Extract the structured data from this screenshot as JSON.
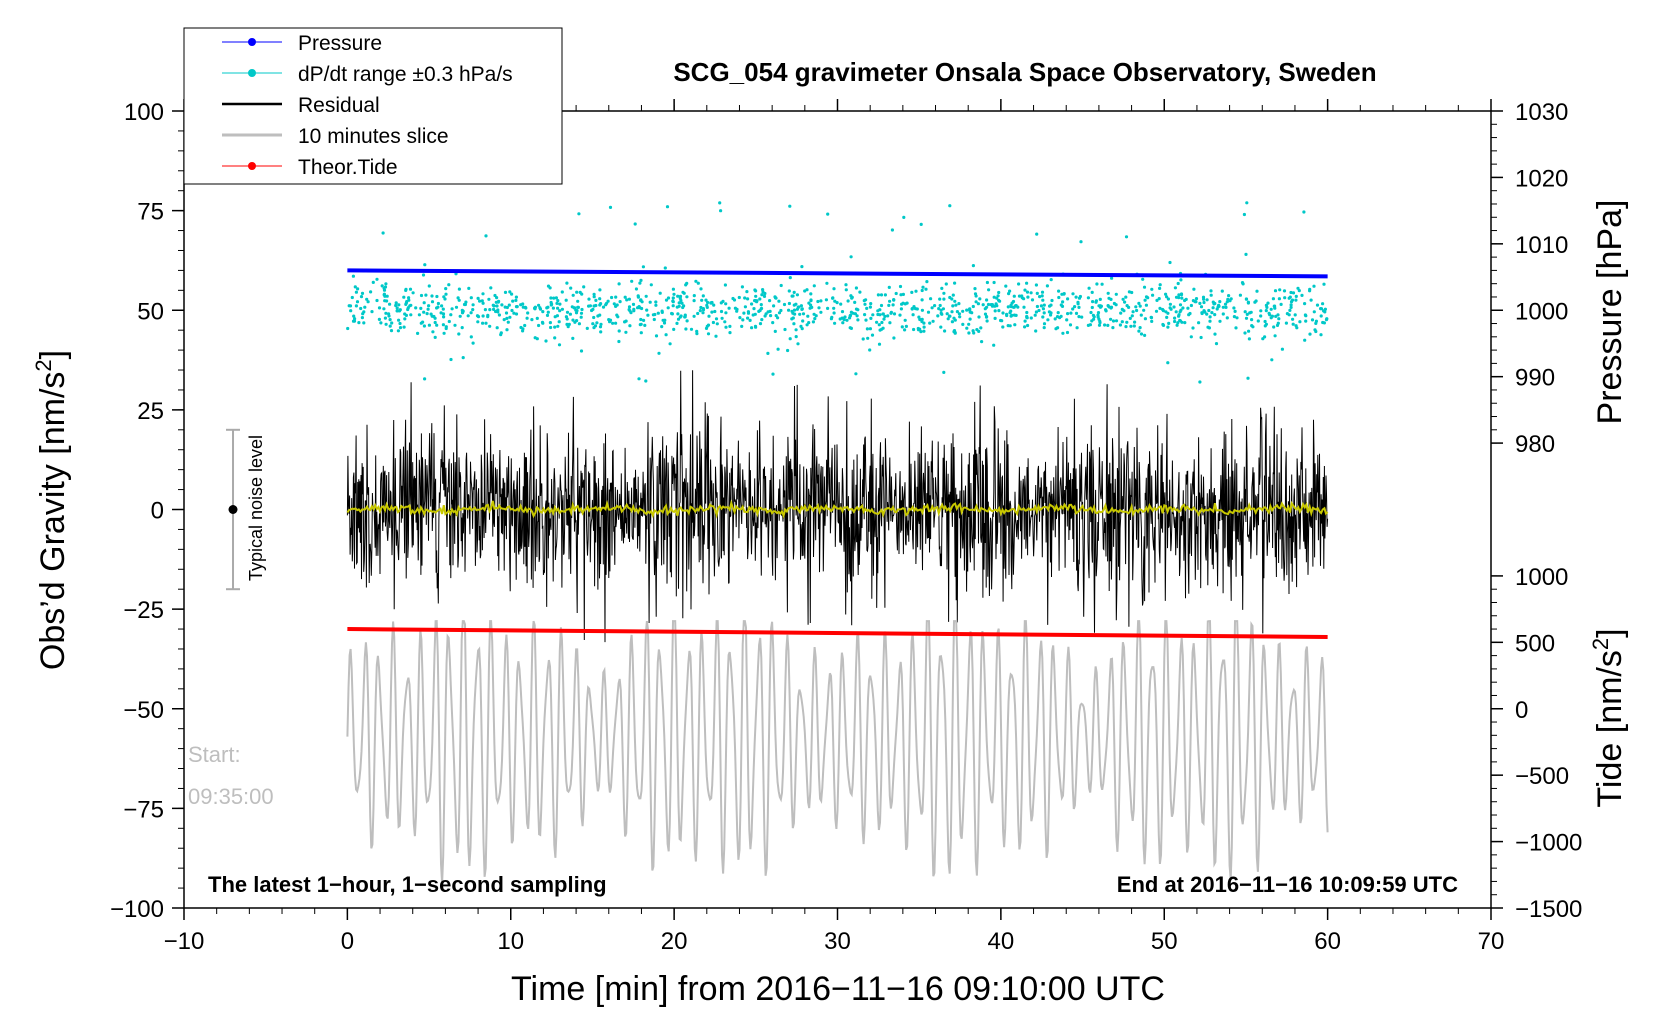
{
  "chart_data": {
    "type": "line",
    "title": "SCG_054 gravimeter Onsala Space Observatory, Sweden",
    "xlabel": "Time [min] from 2016−11−16 09:10:00 UTC",
    "ylabel": "Obs'd Gravity [nm/s²]",
    "ylabel_main": "Obs’d Gravity [nm/s",
    "ylabel_sup": "2",
    "ylabel_close": "]",
    "xlim": [
      -10,
      70
    ],
    "ylim": [
      -100,
      100
    ],
    "xticks": [
      -10,
      0,
      10,
      20,
      30,
      40,
      50,
      60,
      70
    ],
    "xtick_labels": [
      "−10",
      "0",
      "10",
      "20",
      "30",
      "40",
      "50",
      "60",
      "70"
    ],
    "yticks": [
      100,
      75,
      50,
      25,
      0,
      -25,
      -50,
      -75,
      -100
    ],
    "ytick_labels": [
      "100",
      "75",
      "50",
      "25",
      "0",
      "−25",
      "−50",
      "−75",
      "−100"
    ],
    "right_axis_pressure": {
      "label": "Pressure [hPa]",
      "ticks": [
        1030,
        1020,
        1010,
        1000,
        990,
        980
      ],
      "tick_labels": [
        "1030",
        "1020",
        "1010",
        "1000",
        "990",
        "980"
      ]
    },
    "right_axis_tide": {
      "label": "Tide [nm/s²]",
      "label_main": "Tide [nm/s",
      "label_sup": "2",
      "label_close": "]",
      "ticks": [
        1000,
        500,
        0,
        -500,
        -1000,
        -1500
      ],
      "tick_labels": [
        "1000",
        "500",
        "0",
        "−500",
        "−1000",
        "−1500"
      ]
    },
    "legend": {
      "position": "top-left",
      "entries": [
        {
          "label": "Pressure",
          "color": "#0000ff",
          "marker": true
        },
        {
          "label": "dP/dt range ±0.3 hPa/s",
          "color": "#00c8c8",
          "marker": true
        },
        {
          "label": "Residual",
          "color": "#000000",
          "marker": false
        },
        {
          "label": "10 minutes slice",
          "color": "#bebebe",
          "marker": false
        },
        {
          "label": "Theor.Tide",
          "color": "#ff0000",
          "marker": true
        }
      ]
    },
    "series": [
      {
        "name": "Pressure",
        "color": "#0000ff",
        "x_range": [
          0,
          60
        ],
        "y_start": 1003.6,
        "y_end": 1003.3,
        "axis": "pressure"
      },
      {
        "name": "dP/dt range ±0.3 hPa/s",
        "color": "#00c8c8",
        "x_range": [
          0,
          60
        ],
        "center_gravity_units": 50,
        "spread": 15,
        "axis": "gravity"
      },
      {
        "name": "Residual",
        "color": "#000000",
        "x_range": [
          0,
          60
        ],
        "center": 0,
        "amplitude": 35,
        "axis": "gravity"
      },
      {
        "name": "Residual mean",
        "color": "#c8c800",
        "x_range": [
          0,
          60
        ],
        "center": 0,
        "amplitude": 1.5,
        "axis": "gravity"
      },
      {
        "name": "Theor.Tide",
        "color": "#ff0000",
        "x_range": [
          0,
          60
        ],
        "y_start": -30,
        "y_end": -32,
        "axis": "gravity"
      },
      {
        "name": "10 minutes slice",
        "color": "#bebebe",
        "x_range": [
          0,
          60
        ],
        "center": -57,
        "amplitude": 35,
        "axis": "gravity"
      }
    ],
    "noise_bar": {
      "label": "Typical noise level",
      "x": -7,
      "y_low": -20,
      "y_high": 20,
      "center": 0
    },
    "annotations": {
      "start_label": "Start:",
      "start_time": "09:35:00",
      "bottom_left": "The latest 1−hour, 1−second sampling",
      "bottom_right": "End at 2016−11−16 10:09:59 UTC"
    },
    "colors": {
      "pressure": "#0000ff",
      "dpdt": "#00c8c8",
      "residual": "#000000",
      "residual_mean": "#c8c800",
      "slice": "#bebebe",
      "tide": "#ff0000",
      "noise_bar": "#aaaaaa"
    }
  }
}
